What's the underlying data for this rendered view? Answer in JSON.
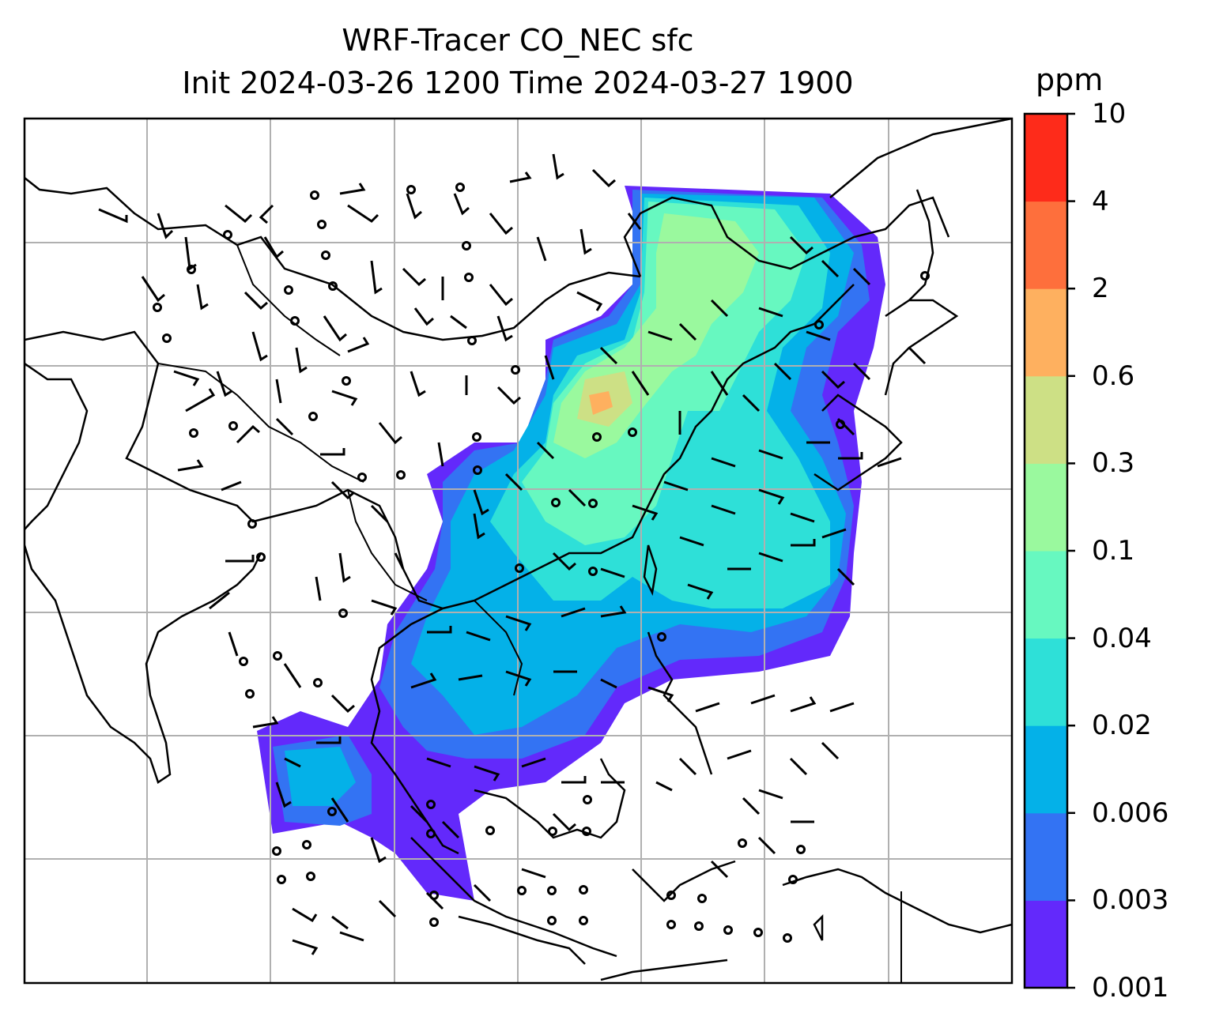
{
  "title": {
    "line1": "WRF-Tracer CO_NEC sfc",
    "line2": "Init 2024-03-26 1200 Time 2024-03-27 1900"
  },
  "colorbar": {
    "unit": "ppm",
    "ticks": [
      "0.001",
      "0.003",
      "0.006",
      "0.02",
      "0.04",
      "0.1",
      "0.3",
      "0.6",
      "2",
      "4",
      "10"
    ],
    "colors": [
      "#6329fb",
      "#3373f3",
      "#04b1e8",
      "#2ee0d8",
      "#67f8c0",
      "#9af99e",
      "#cde085",
      "#feb05f",
      "#fe6f3c",
      "#fe2b1a"
    ]
  },
  "layers": [
    "coastlines",
    "country-borders",
    "gridlines",
    "wind-barbs",
    "co-tracer-filled-contours"
  ]
}
